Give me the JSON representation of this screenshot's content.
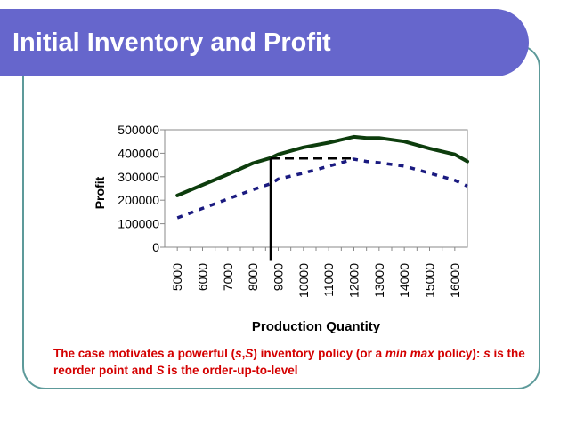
{
  "slide": {
    "title": "Initial Inventory and Profit",
    "caption": {
      "p1": "The case motivates a powerful (",
      "s_lower": "s",
      "comma": ",",
      "s_upper": "S",
      "p2": ") inventory policy (or a ",
      "minmax": "min max",
      "p3": " policy): ",
      "p4": " is the reorder point and ",
      "p5": " is the order-up-to-level"
    }
  },
  "colors": {
    "title_bar": "#6666cc",
    "frame": "#5d9a9a",
    "solid_series": "#0d3d0d",
    "dashed_series": "#1a1a80",
    "caption": "#d40000"
  },
  "chart_data": {
    "type": "line",
    "xlabel": "Production Quantity",
    "ylabel": "Profit",
    "x": [
      5000,
      6000,
      7000,
      8000,
      9000,
      10000,
      11000,
      12000,
      13000,
      14000,
      15000,
      16000
    ],
    "x_tick_labels": [
      "5000",
      "6000",
      "7000",
      "8000",
      "9000",
      "10000",
      "11000",
      "12000",
      "13000",
      "14000",
      "15000",
      "16000"
    ],
    "x_range": [
      4500,
      16500
    ],
    "ylim": [
      0,
      500000
    ],
    "y_ticks": [
      0,
      100000,
      200000,
      300000,
      400000,
      500000
    ],
    "y_tick_labels": [
      "0",
      "100000",
      "200000",
      "300000",
      "400000",
      "500000"
    ],
    "grid": false,
    "legend": "none",
    "series": [
      {
        "style": "solid",
        "x": [
          5000,
          6000,
          7000,
          8000,
          8700,
          9000,
          10000,
          11000,
          12000,
          12500,
          13000,
          14000,
          15000,
          16000,
          16500
        ],
        "y": [
          220000,
          265000,
          310000,
          358000,
          380000,
          395000,
          425000,
          445000,
          470000,
          465000,
          465000,
          450000,
          420000,
          395000,
          365000
        ]
      },
      {
        "style": "dashed",
        "x": [
          5000,
          6000,
          7000,
          8000,
          8700,
          9000,
          10000,
          11000,
          12000,
          12500,
          13000,
          14000,
          15000,
          16000,
          16500
        ],
        "y": [
          125000,
          165000,
          205000,
          245000,
          270000,
          290000,
          315000,
          345000,
          375000,
          365000,
          360000,
          345000,
          315000,
          285000,
          260000
        ]
      }
    ],
    "annotations": {
      "vertical_line_x": 8700,
      "horizontal_dashed_y": 378000,
      "horizontal_dashed_x": [
        8700,
        12000
      ],
      "vertical_line_bottom_y": -55000
    }
  }
}
